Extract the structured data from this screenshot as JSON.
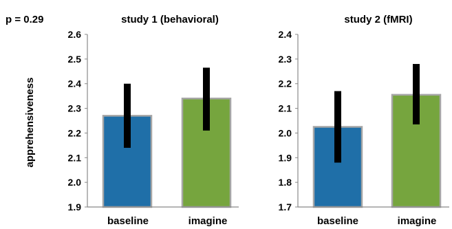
{
  "figure": {
    "pvalue_label": "p = 0.29",
    "ylabel": "apprehensiveness"
  },
  "chart_data": [
    {
      "type": "bar",
      "title": "study 1 (behavioral)",
      "xlabel": "",
      "ylabel": "apprehensiveness",
      "categories": [
        "baseline",
        "imagine"
      ],
      "values": [
        2.27,
        2.34
      ],
      "error_low": [
        2.14,
        2.21
      ],
      "error_high": [
        2.4,
        2.465
      ],
      "ylim": [
        1.9,
        2.6
      ],
      "yticks": [
        "1.9",
        "2.0",
        "2.1",
        "2.2",
        "2.3",
        "2.4",
        "2.5",
        "2.6"
      ],
      "grid": false,
      "bar_colors": [
        "#1f6fa8",
        "#76a53e"
      ],
      "bar_edge_color": "#a6a6a6",
      "error_color": "#000000"
    },
    {
      "type": "bar",
      "title": "study 2 (fMRI)",
      "xlabel": "",
      "ylabel": "",
      "categories": [
        "baseline",
        "imagine"
      ],
      "values": [
        2.025,
        2.155
      ],
      "error_low": [
        1.88,
        2.035
      ],
      "error_high": [
        2.17,
        2.28
      ],
      "ylim": [
        1.7,
        2.4
      ],
      "yticks": [
        "1.7",
        "1.8",
        "1.9",
        "2.0",
        "2.1",
        "2.2",
        "2.3",
        "2.4"
      ],
      "grid": false,
      "bar_colors": [
        "#1f6fa8",
        "#76a53e"
      ],
      "bar_edge_color": "#a6a6a6",
      "error_color": "#000000"
    }
  ]
}
